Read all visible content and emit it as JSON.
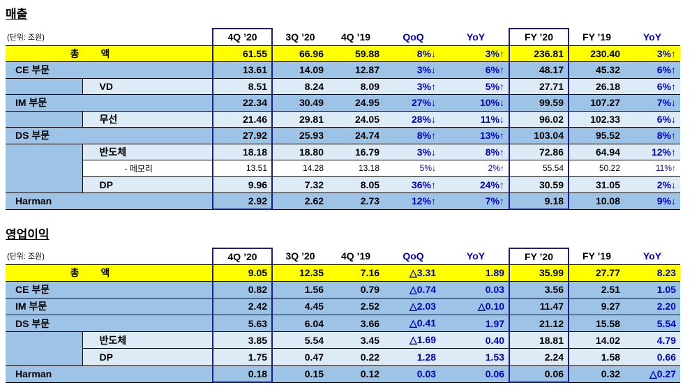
{
  "sections": [
    {
      "title": "매출",
      "unit": "(단위: 조원)",
      "headers": [
        "4Q ’20",
        "3Q ’20",
        "4Q ’19",
        "QoQ",
        "YoY",
        "FY ’20",
        "FY ’19",
        "YoY"
      ],
      "rows": [
        {
          "kind": "total",
          "label": "총        액",
          "cells": [
            "61.55",
            "66.96",
            "59.88",
            "8%↓",
            "3%↑",
            "236.81",
            "230.40",
            "3%↑"
          ]
        },
        {
          "kind": "segment",
          "label": "CE 부문",
          "cells": [
            "13.61",
            "14.09",
            "12.87",
            "3%↓",
            "6%↑",
            "48.17",
            "45.32",
            "6%↑"
          ]
        },
        {
          "kind": "sub",
          "label": "VD",
          "cells": [
            "8.51",
            "8.24",
            "8.09",
            "3%↑",
            "5%↑",
            "27.71",
            "26.18",
            "6%↑"
          ]
        },
        {
          "kind": "segment",
          "label": "IM 부문",
          "cells": [
            "22.34",
            "30.49",
            "24.95",
            "27%↓",
            "10%↓",
            "99.59",
            "107.27",
            "7%↓"
          ]
        },
        {
          "kind": "sub",
          "label": "무선",
          "cells": [
            "21.46",
            "29.81",
            "24.05",
            "28%↓",
            "11%↓",
            "96.02",
            "102.33",
            "6%↓"
          ]
        },
        {
          "kind": "segment",
          "label": "DS 부문",
          "cells": [
            "27.92",
            "25.93",
            "24.74",
            "8%↑",
            "13%↑",
            "103.04",
            "95.52",
            "8%↑"
          ]
        },
        {
          "kind": "sub",
          "label": "반도체",
          "cells": [
            "18.18",
            "18.80",
            "16.79",
            "3%↓",
            "8%↑",
            "72.86",
            "64.94",
            "12%↑"
          ]
        },
        {
          "kind": "detail",
          "label": "- 메모리",
          "cells": [
            "13.51",
            "14.28",
            "13.18",
            "5%↓",
            "2%↑",
            "55.54",
            "50.22",
            "11%↑"
          ]
        },
        {
          "kind": "sub",
          "label": "DP",
          "cells": [
            "9.96",
            "7.32",
            "8.05",
            "36%↑",
            "24%↑",
            "30.59",
            "31.05",
            "2%↓"
          ]
        },
        {
          "kind": "segment",
          "label": "Harman",
          "cells": [
            "2.92",
            "2.62",
            "2.73",
            "12%↑",
            "7%↑",
            "9.18",
            "10.08",
            "9%↓"
          ]
        }
      ]
    },
    {
      "title": "영업이익",
      "unit": "(단위: 조원)",
      "headers": [
        "4Q ’20",
        "3Q ’20",
        "4Q ’19",
        "QoQ",
        "YoY",
        "FY ’20",
        "FY ’19",
        "YoY"
      ],
      "rows": [
        {
          "kind": "total",
          "label": "총        액",
          "cells": [
            "9.05",
            "12.35",
            "7.16",
            "△3.31",
            "1.89",
            "35.99",
            "27.77",
            "8.23"
          ]
        },
        {
          "kind": "segment",
          "label": "CE 부문",
          "cells": [
            "0.82",
            "1.56",
            "0.79",
            "△0.74",
            "0.03",
            "3.56",
            "2.51",
            "1.05"
          ]
        },
        {
          "kind": "segment",
          "label": "IM 부문",
          "cells": [
            "2.42",
            "4.45",
            "2.52",
            "△2.03",
            "△0.10",
            "11.47",
            "9.27",
            "2.20"
          ]
        },
        {
          "kind": "segment",
          "label": "DS 부문",
          "cells": [
            "5.63",
            "6.04",
            "3.66",
            "△0.41",
            "1.97",
            "21.12",
            "15.58",
            "5.54"
          ]
        },
        {
          "kind": "sub",
          "label": "반도체",
          "cells": [
            "3.85",
            "5.54",
            "3.45",
            "△1.69",
            "0.40",
            "18.81",
            "14.02",
            "4.79"
          ]
        },
        {
          "kind": "sub",
          "label": "DP",
          "cells": [
            "1.75",
            "0.47",
            "0.22",
            "1.28",
            "1.53",
            "2.24",
            "1.58",
            "0.66"
          ]
        },
        {
          "kind": "segment",
          "label": "Harman",
          "cells": [
            "0.18",
            "0.15",
            "0.12",
            "0.03",
            "0.06",
            "0.06",
            "0.32",
            "△0.27"
          ]
        }
      ]
    }
  ]
}
